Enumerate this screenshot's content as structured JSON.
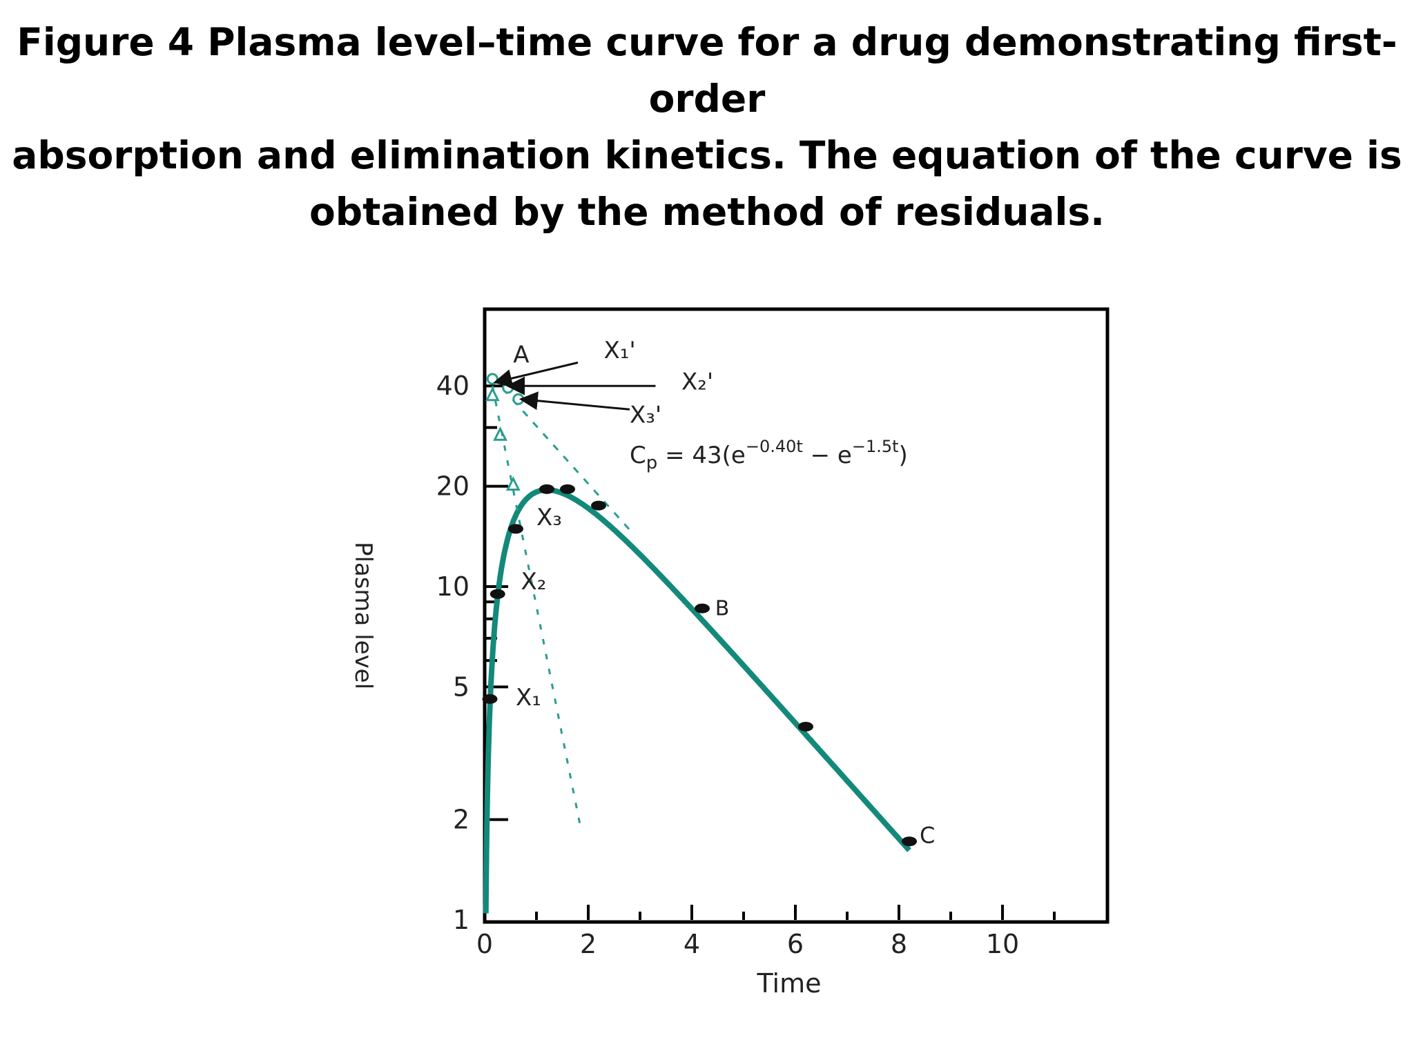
{
  "title_lines": [
    "Figure 4 Plasma level–time curve for a drug demonstrating first-order",
    "absorption and elimination kinetics. The equation of the curve is",
    "obtained by the method of residuals."
  ],
  "colors": {
    "curve": "#13897a",
    "residual": "#2a9d8f",
    "point": "#111111",
    "frame": "#000000"
  },
  "chart_data": {
    "type": "line",
    "xlabel": "Time",
    "ylabel": "Plasma level",
    "y_scale": "log",
    "xlim": [
      0,
      12
    ],
    "ylim": [
      1,
      65
    ],
    "x_ticks": [
      {
        "value": 0,
        "label": "0"
      },
      {
        "value": 2,
        "label": "2"
      },
      {
        "value": 4,
        "label": "4"
      },
      {
        "value": 6,
        "label": "6"
      },
      {
        "value": 8,
        "label": "8"
      },
      {
        "value": 10,
        "label": "10"
      }
    ],
    "x_minor_ticks": [
      1,
      3,
      5,
      7,
      9,
      11
    ],
    "y_ticks": [
      {
        "value": 1,
        "label": "1"
      },
      {
        "value": 2,
        "label": "2"
      },
      {
        "value": 5,
        "label": "5"
      },
      {
        "value": 10,
        "label": "10"
      },
      {
        "value": 20,
        "label": "20"
      },
      {
        "value": 40,
        "label": "40"
      }
    ],
    "y_minor_ticks": [
      6,
      7,
      8,
      9,
      30
    ],
    "equation": {
      "Cp": "C",
      "Cp_sub": "p",
      "mid": " = 43(e",
      "exp1": "−0.40t",
      "minus": " − e",
      "exp2": "−1.5t",
      "close": ")"
    },
    "curve_equation": {
      "A": 43,
      "ka": 1.5,
      "k": 0.4
    },
    "series": [
      {
        "name": "",
        "points": [
          {
            "x": 0.1,
            "y": 4.6
          },
          {
            "x": 0.25,
            "y": 9.5
          },
          {
            "x": 0.6,
            "y": 14.9
          },
          {
            "x": 1.2,
            "y": 19.6
          },
          {
            "x": 1.6,
            "y": 19.6
          },
          {
            "x": 2.2,
            "y": 17.5
          },
          {
            "x": 4.2,
            "y": 8.6
          },
          {
            "x": 6.2,
            "y": 3.8
          },
          {
            "x": 8.2,
            "y": 1.72
          }
        ]
      },
      {
        "name": "",
        "style": "dashed-residual",
        "line": [
          {
            "x": 0.15,
            "y": 40
          },
          {
            "x": 1.85,
            "y": 1.9
          }
        ],
        "points": [
          {
            "x": 0.15,
            "y": 37.5
          },
          {
            "x": 0.3,
            "y": 28.5
          },
          {
            "x": 0.55,
            "y": 20.2
          }
        ]
      },
      {
        "name": "",
        "style": "dashed-extrapolation",
        "line": [
          {
            "x": 0.15,
            "y": 42.5
          },
          {
            "x": 2.8,
            "y": 14.8
          }
        ],
        "points": [
          {
            "x": 0.15,
            "y": 42
          },
          {
            "x": 0.45,
            "y": 39.5
          },
          {
            "x": 0.65,
            "y": 36.5
          }
        ]
      }
    ],
    "annotations": [
      {
        "text": "A",
        "x": 0.55,
        "y": 47,
        "size": 34
      },
      {
        "text": "X₁'",
        "x": 2.3,
        "y": 48.5,
        "size": 34
      },
      {
        "text": "X₂'",
        "x": 3.8,
        "y": 39,
        "size": 34
      },
      {
        "text": "X₃'",
        "x": 2.8,
        "y": 31,
        "size": 34
      },
      {
        "text": "X₃",
        "x": 1.0,
        "y": 15.3,
        "size": 34
      },
      {
        "text": "X₂",
        "x": 0.7,
        "y": 9.8,
        "size": 34
      },
      {
        "text": "X₁",
        "x": 0.6,
        "y": 4.4,
        "size": 34
      },
      {
        "text": "B",
        "x": 4.45,
        "y": 8.2,
        "size": 30
      },
      {
        "text": "C",
        "x": 8.4,
        "y": 1.7,
        "size": 32
      }
    ],
    "arrows": [
      {
        "from": {
          "x": 1.8,
          "y": 47
        },
        "to": {
          "x": 0.2,
          "y": 41
        }
      },
      {
        "from": {
          "x": 3.3,
          "y": 40
        },
        "to": {
          "x": 0.45,
          "y": 40
        }
      },
      {
        "from": {
          "x": 2.8,
          "y": 34
        },
        "to": {
          "x": 0.7,
          "y": 36.5
        }
      }
    ]
  }
}
